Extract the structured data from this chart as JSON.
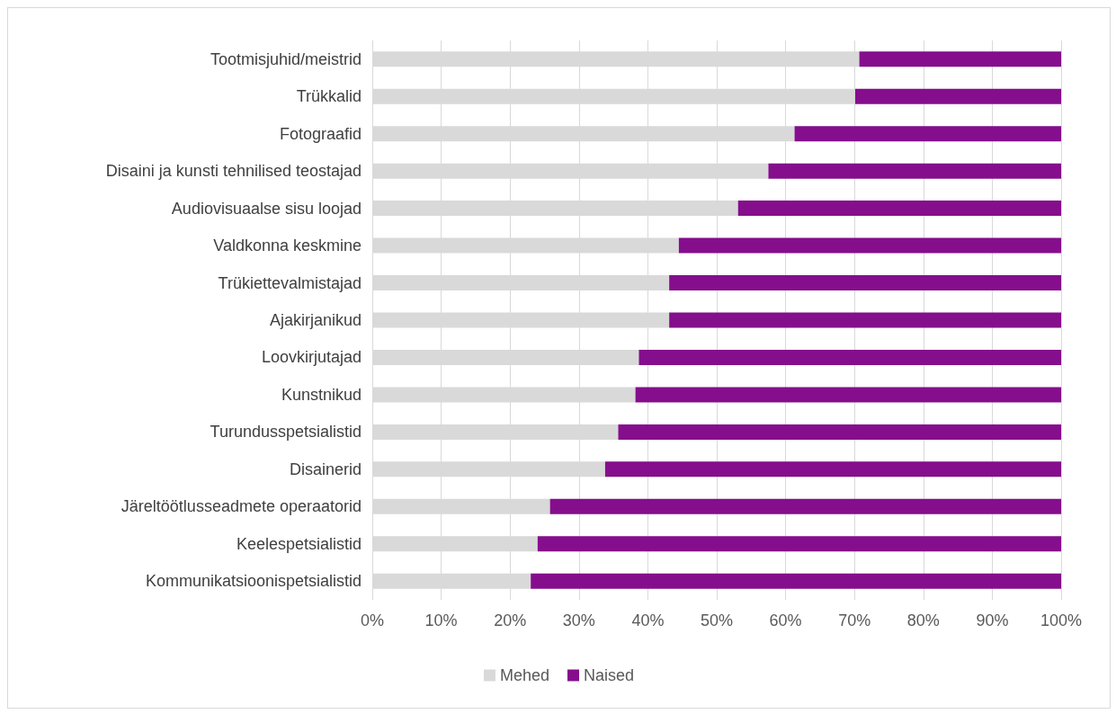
{
  "chart_data": {
    "type": "bar",
    "orientation": "horizontal",
    "stacked": true,
    "categories": [
      "Tootmisjuhid/meistrid",
      "Trükkalid",
      "Fotograafid",
      "Disaini ja kunsti tehnilised teostajad",
      "Audiovisuaalse sisu loojad",
      "Valdkonna keskmine",
      "Trükiettevalmistajad",
      "Ajakirjanikud",
      "Loovkirjutajad",
      "Kunstnikud",
      "Turundusspetsialistid",
      "Disainerid",
      "Järeltöötlusseadmete operaatorid",
      "Keelespetsialistid",
      "Kommunikatsioonispetsialistid"
    ],
    "series": [
      {
        "name": "Mehed",
        "color": "#d9d9d9",
        "values": [
          70.7,
          70.1,
          61.3,
          57.5,
          53.1,
          44.5,
          43.1,
          43.1,
          38.7,
          38.2,
          35.7,
          33.8,
          25.8,
          24.0,
          23.0
        ]
      },
      {
        "name": "Naised",
        "color": "#850e8c",
        "values": [
          29.3,
          29.9,
          38.7,
          42.5,
          46.9,
          55.5,
          56.9,
          56.9,
          61.3,
          61.8,
          64.3,
          66.2,
          74.2,
          76.0,
          77.0
        ]
      }
    ],
    "xlim": [
      0,
      100
    ],
    "xticks": [
      {
        "value": 0,
        "label": "0%"
      },
      {
        "value": 10,
        "label": "10%"
      },
      {
        "value": 20,
        "label": "20%"
      },
      {
        "value": 30,
        "label": "30%"
      },
      {
        "value": 40,
        "label": "40%"
      },
      {
        "value": 50,
        "label": "50%"
      },
      {
        "value": 60,
        "label": "60%"
      },
      {
        "value": 70,
        "label": "70%"
      },
      {
        "value": 80,
        "label": "80%"
      },
      {
        "value": 90,
        "label": "90%"
      },
      {
        "value": 100,
        "label": "100%"
      }
    ],
    "grid": "x",
    "legend": "bottom"
  }
}
